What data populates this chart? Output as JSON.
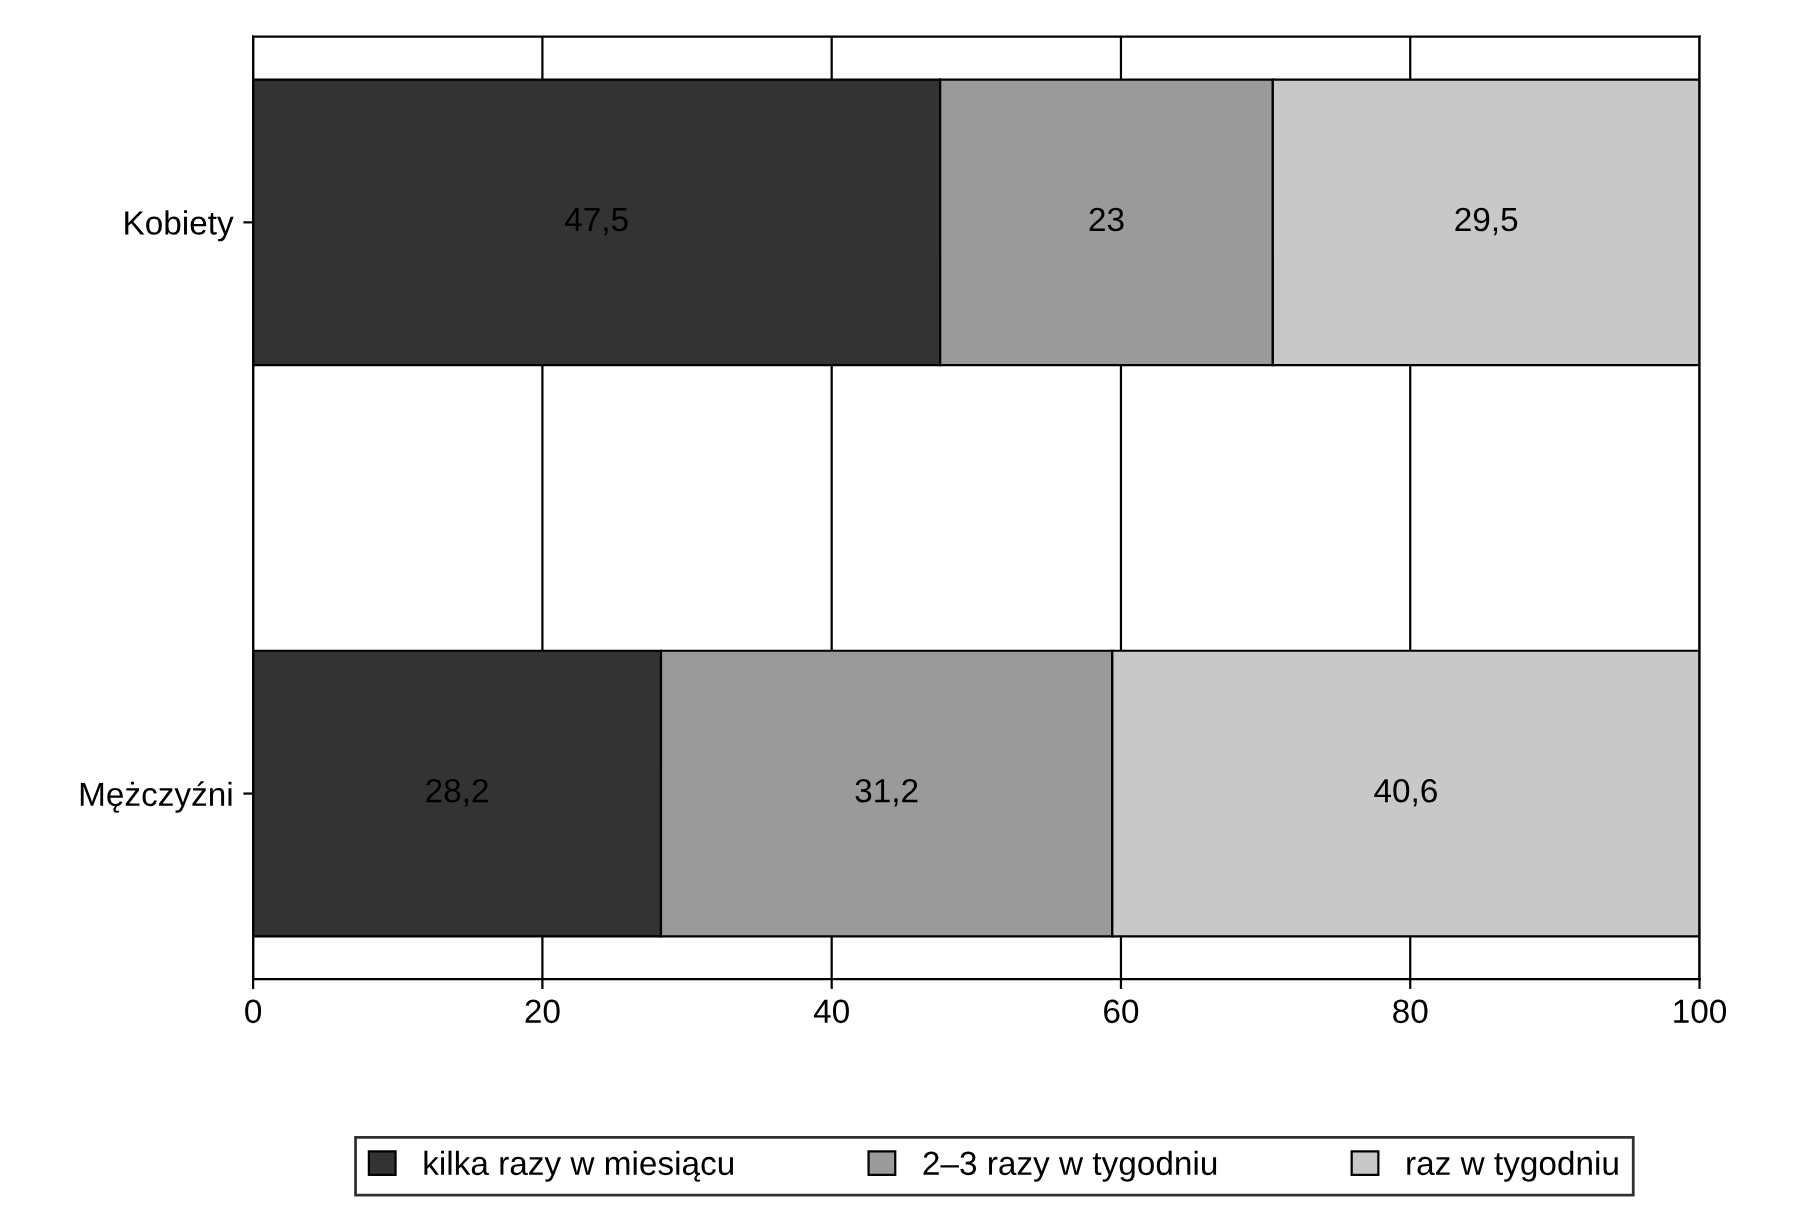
{
  "chart_data": {
    "type": "bar",
    "orientation": "horizontal",
    "stacked": true,
    "categories": [
      "Kobiety",
      "Mężczyźni"
    ],
    "series": [
      {
        "name": "kilka razy w miesiącu",
        "color": "#333333",
        "values": [
          47.5,
          28.2
        ],
        "value_labels": [
          "47,5",
          "28,2"
        ]
      },
      {
        "name": "2–3 razy w tygodniu",
        "color": "#9a9a9a",
        "values": [
          23,
          31.2
        ],
        "value_labels": [
          "23",
          "31,2"
        ]
      },
      {
        "name": "raz w tygodniu",
        "color": "#c8c8c8",
        "values": [
          29.5,
          40.6
        ],
        "value_labels": [
          "29,5",
          "40,6"
        ]
      }
    ],
    "xlim": [
      0,
      100
    ],
    "xticks": [
      0,
      20,
      40,
      60,
      80,
      100
    ],
    "grid": "x",
    "legend": "bottom"
  }
}
